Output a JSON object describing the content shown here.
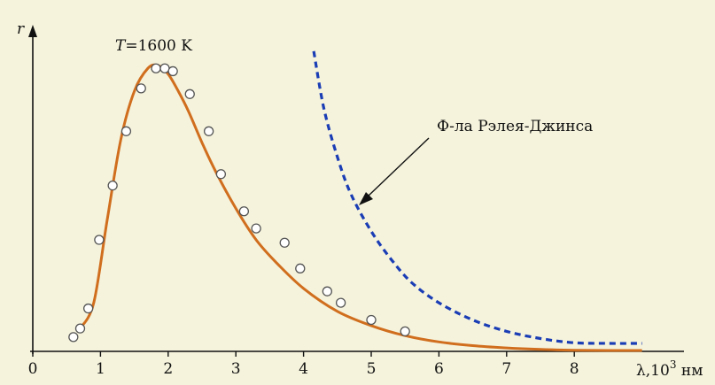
{
  "chart_data": {
    "type": "line",
    "ylabel": "r",
    "xlabel_symbol": "λ",
    "xlabel_unit_base": ",10",
    "xlabel_unit_exp": "3",
    "xlabel_unit_tail": " нм",
    "xlim": [
      0,
      9
    ],
    "x_ticks": [
      "0",
      "1",
      "2",
      "3",
      "4",
      "5",
      "6",
      "7",
      "8"
    ],
    "temperature_var": "T",
    "temperature_value": "=1600 K",
    "rayleigh_label": "Ф-ла Рэлея-Джинса",
    "grid": false,
    "colors": {
      "planck": "#d06e1e",
      "rayleigh": "#1a3db5",
      "points": "#555555",
      "background": "#f5f3dc"
    },
    "series": [
      {
        "kind": "curve",
        "x": [
          0.7,
          0.9,
          1.1,
          1.3,
          1.5,
          1.7,
          1.85,
          2.0,
          2.15,
          2.3,
          2.5,
          2.7,
          3.0,
          3.3,
          3.6,
          4.0,
          4.5,
          5.0,
          5.5,
          6.0,
          6.5,
          7.0,
          7.5,
          8.0,
          8.5,
          9.0
        ],
        "y": [
          0.08,
          0.17,
          0.46,
          0.74,
          0.91,
          0.99,
          1.0,
          0.97,
          0.91,
          0.84,
          0.73,
          0.63,
          0.5,
          0.39,
          0.31,
          0.22,
          0.14,
          0.09,
          0.055,
          0.033,
          0.02,
          0.012,
          0.007,
          0.004,
          0.003,
          0.003
        ]
      },
      {
        "kind": "dashed",
        "x": [
          4.15,
          4.3,
          4.5,
          4.7,
          5.0,
          5.3,
          5.6,
          6.0,
          6.5,
          7.0,
          7.5,
          8.0,
          8.5,
          9.0
        ],
        "y": [
          1.05,
          0.85,
          0.68,
          0.55,
          0.42,
          0.32,
          0.24,
          0.17,
          0.11,
          0.07,
          0.045,
          0.03,
          0.028,
          0.028
        ]
      },
      {
        "kind": "points",
        "x": [
          0.6,
          0.7,
          0.82,
          0.98,
          1.18,
          1.38,
          1.6,
          1.82,
          1.95,
          2.07,
          2.32,
          2.6,
          2.78,
          3.12,
          3.3,
          3.72,
          3.95,
          4.35,
          4.55,
          5.0,
          5.5
        ],
        "y": [
          0.05,
          0.08,
          0.15,
          0.39,
          0.58,
          0.77,
          0.92,
          0.99,
          0.99,
          0.98,
          0.9,
          0.77,
          0.62,
          0.49,
          0.43,
          0.38,
          0.29,
          0.21,
          0.17,
          0.11,
          0.07
        ]
      }
    ]
  }
}
